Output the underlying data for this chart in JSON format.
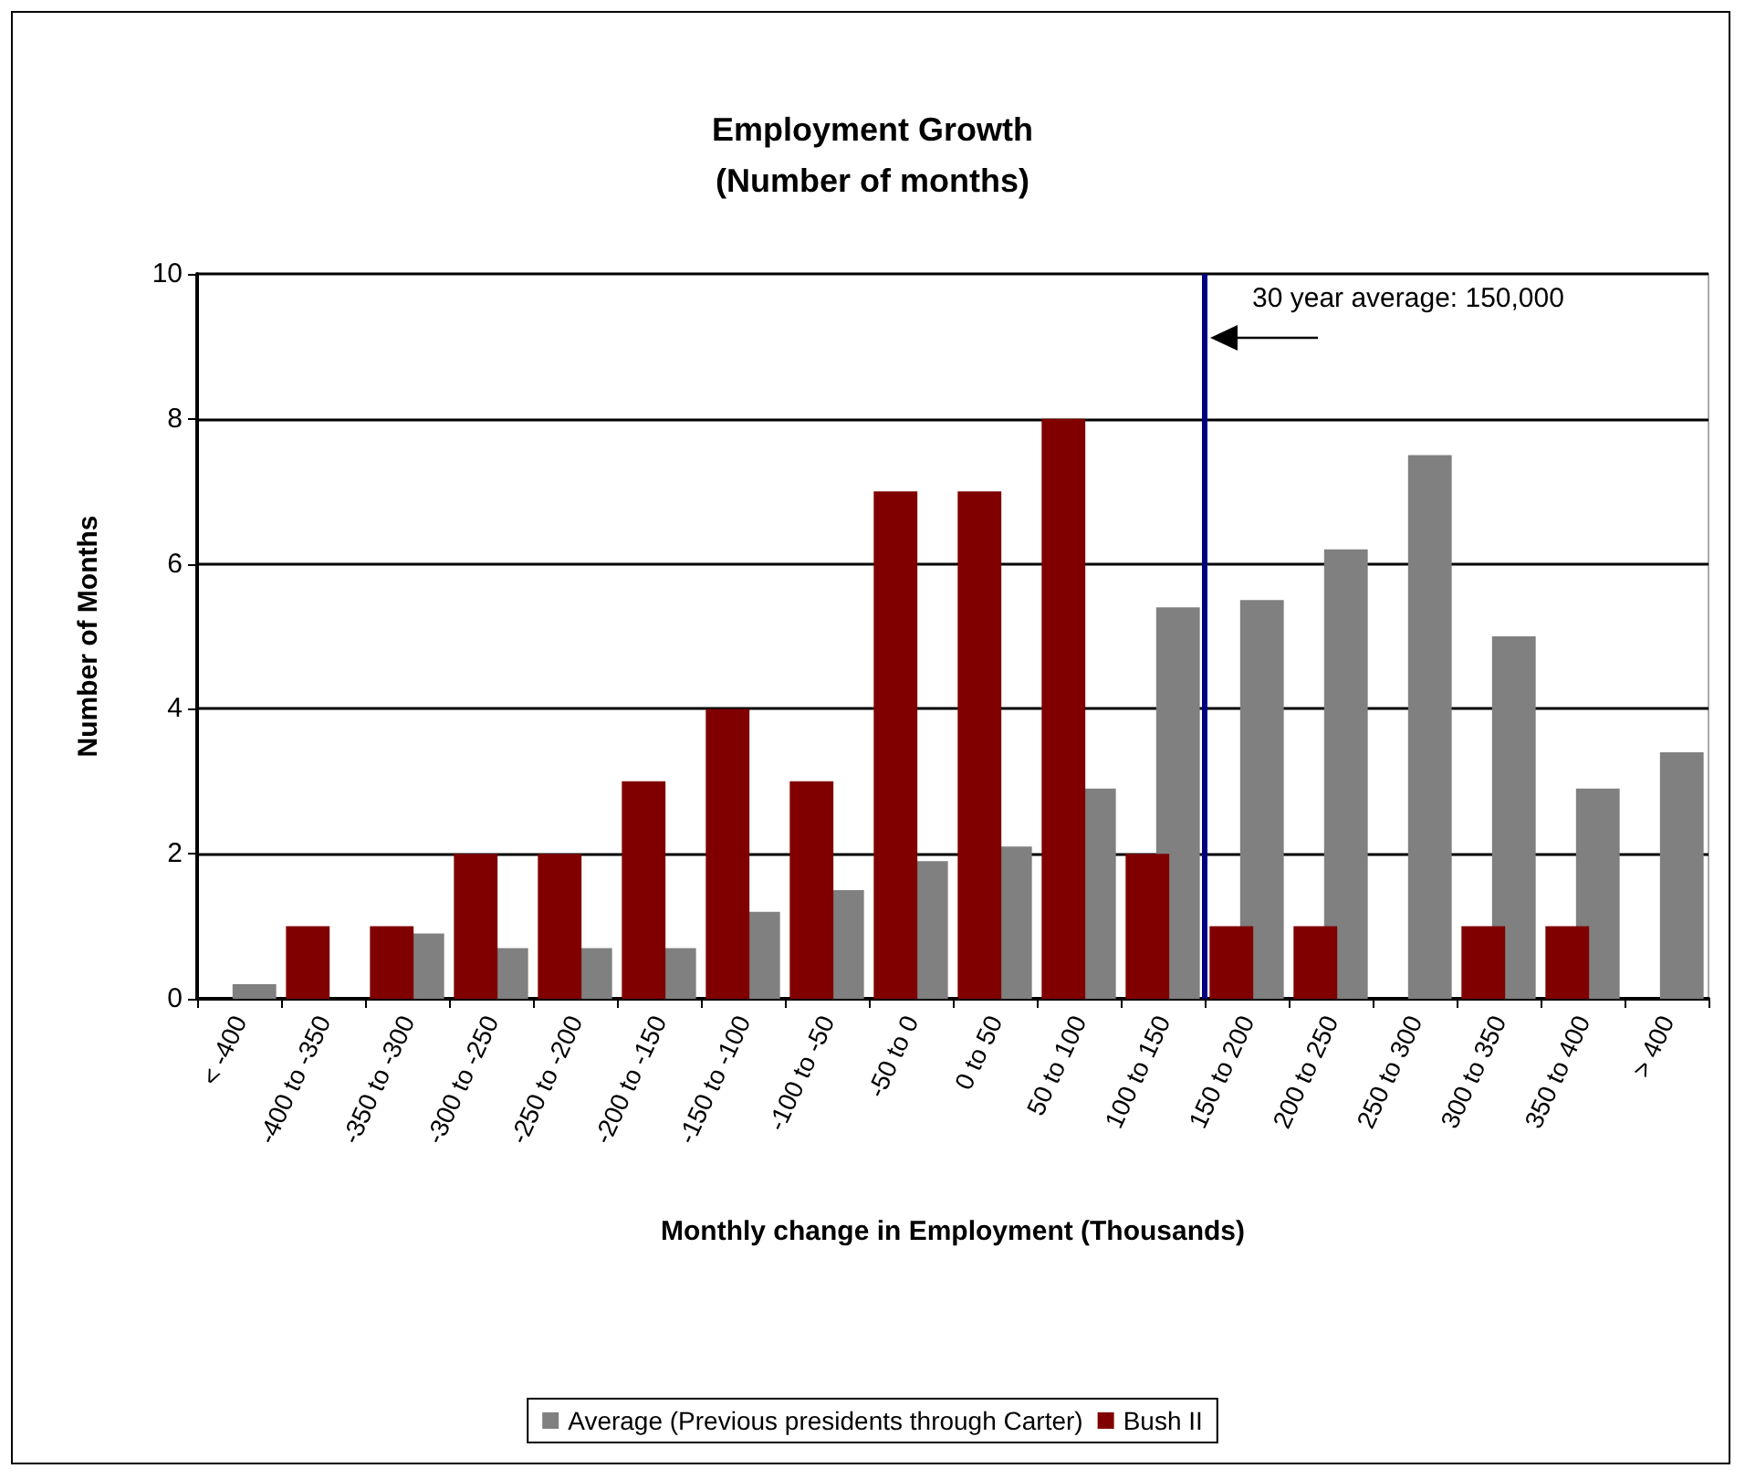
{
  "chart_data": {
    "type": "bar",
    "title": "Employment Growth\n(Number of months)",
    "xlabel": "Monthly change in Employment (Thousands)",
    "ylabel": "Number of Months",
    "categories": [
      "< -400",
      "-400 to -350",
      "-350 to -300",
      "-300 to -250",
      "-250 to -200",
      "-200 to -150",
      "-150 to -100",
      "-100 to -50",
      "-50 to 0",
      "0 to 50",
      "50 to 100",
      "100 to 150",
      "150 to 200",
      "200 to 250",
      "250 to 300",
      "300 to 350",
      "350 to 400",
      "> 400"
    ],
    "series": [
      {
        "name": "Average (Previous presidents through Carter)",
        "color": "#808080",
        "values": [
          0.2,
          0,
          0.9,
          0.7,
          0.7,
          0.7,
          1.2,
          1.5,
          1.9,
          2.1,
          2.9,
          5.4,
          5.5,
          6.2,
          7.5,
          5.0,
          2.9,
          3.4
        ]
      },
      {
        "name": "Bush II",
        "color": "#800000",
        "values": [
          0,
          1,
          1,
          2,
          2,
          3,
          4,
          3,
          7,
          7,
          8,
          2,
          1,
          1,
          0,
          1,
          1,
          0
        ]
      }
    ],
    "ylim": [
      0,
      10
    ],
    "yticks": [
      0,
      2,
      4,
      6,
      8,
      10
    ],
    "grid": "y",
    "legend": "bottom",
    "ref_lines": [
      {
        "axis": "x",
        "value": "150 to 200",
        "label": "30 year average: 150,000",
        "color": "#000080"
      }
    ]
  }
}
